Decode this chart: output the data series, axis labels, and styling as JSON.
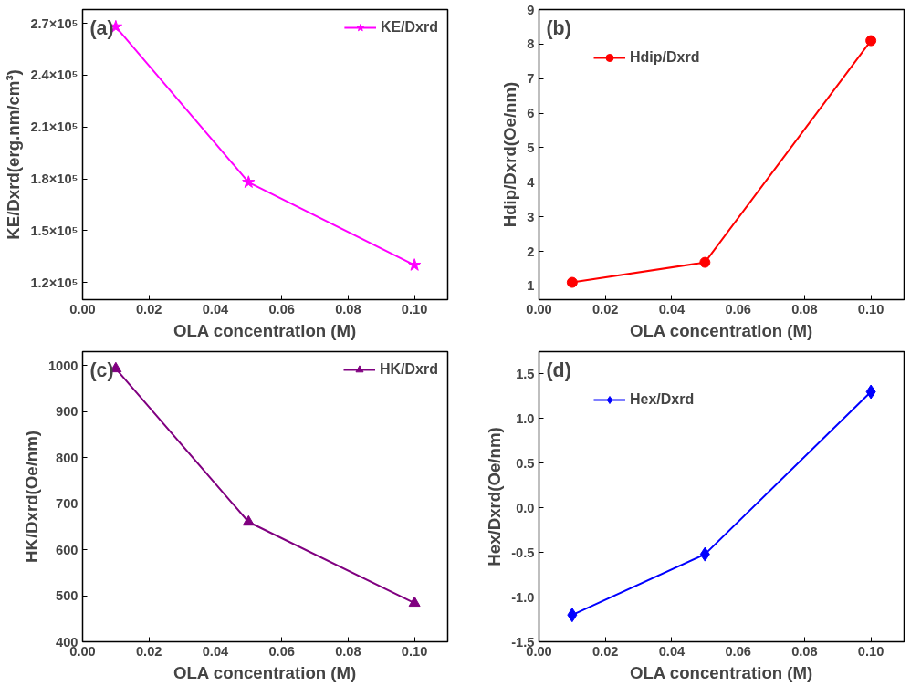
{
  "chart_data": [
    {
      "type": "line",
      "xlabel": "OLA concentration (M)",
      "ylabel": "KE/Dxrd(erg.nm/cm³)",
      "annotations": [
        "(a)"
      ],
      "x": [
        0.01,
        0.05,
        0.1
      ],
      "series": [
        {
          "name": "KE/Dxrd",
          "color": "#ff00ff",
          "values": [
            268000,
            178000,
            130000
          ]
        }
      ],
      "xlim": [
        0,
        0.11
      ],
      "xticks": [
        {
          "value": 0,
          "label": "0.00"
        },
        {
          "value": 0.02,
          "label": "0.02"
        },
        {
          "value": 0.04,
          "label": "0.04"
        },
        {
          "value": 0.06,
          "label": "0.06"
        },
        {
          "value": 0.08,
          "label": "0.08"
        },
        {
          "value": 0.1,
          "label": "0.10"
        }
      ],
      "ylim": [
        110000,
        278000
      ],
      "yticks": [
        {
          "value": 120000,
          "label": "1.2×10⁵"
        },
        {
          "value": 150000,
          "label": "1.5×10⁵"
        },
        {
          "value": 180000,
          "label": "1.8×10⁵"
        },
        {
          "value": 210000,
          "label": "2.1×10⁵"
        },
        {
          "value": 240000,
          "label": "2.4×10⁵"
        },
        {
          "value": 270000,
          "label": "2.7×10⁵"
        }
      ],
      "marker": "star",
      "legend": "top right",
      "grid": false
    },
    {
      "type": "line",
      "xlabel": "OLA concentration (M)",
      "ylabel": "Hdip/Dxrd(Oe/nm)",
      "annotations": [
        "(b)"
      ],
      "x": [
        0.01,
        0.05,
        0.1
      ],
      "series": [
        {
          "name": "Hdip/Dxrd",
          "color": "#ff0000",
          "values": [
            1.1,
            1.68,
            8.1
          ]
        }
      ],
      "xlim": [
        0,
        0.11
      ],
      "xticks": [
        {
          "value": 0,
          "label": "0.00"
        },
        {
          "value": 0.02,
          "label": "0.02"
        },
        {
          "value": 0.04,
          "label": "0.04"
        },
        {
          "value": 0.06,
          "label": "0.06"
        },
        {
          "value": 0.08,
          "label": "0.08"
        },
        {
          "value": 0.1,
          "label": "0.10"
        }
      ],
      "ylim": [
        0.6,
        9
      ],
      "yticks": [
        1,
        2,
        3,
        4,
        5,
        6,
        7,
        8,
        9
      ],
      "marker": "circle",
      "legend": "top left",
      "grid": false
    },
    {
      "type": "line",
      "xlabel": "OLA concentration (M)",
      "ylabel": "HK/Dxrd(Oe/nm)",
      "annotations": [
        "(c)"
      ],
      "x": [
        0.01,
        0.05,
        0.1
      ],
      "series": [
        {
          "name": "HK/Dxrd",
          "color": "#800080",
          "values": [
            993,
            660,
            484
          ]
        }
      ],
      "xlim": [
        0,
        0.11
      ],
      "xticks": [
        {
          "value": 0,
          "label": "0.00"
        },
        {
          "value": 0.02,
          "label": "0.02"
        },
        {
          "value": 0.04,
          "label": "0.04"
        },
        {
          "value": 0.06,
          "label": "0.06"
        },
        {
          "value": 0.08,
          "label": "0.08"
        },
        {
          "value": 0.1,
          "label": "0.10"
        }
      ],
      "ylim": [
        400,
        1030
      ],
      "yticks": [
        400,
        500,
        600,
        700,
        800,
        900,
        1000
      ],
      "marker": "triangle",
      "legend": "top right",
      "grid": false
    },
    {
      "type": "line",
      "xlabel": "OLA concentration (M)",
      "ylabel": "Hex/Dxrd(Oe/nm)",
      "annotations": [
        "(d)"
      ],
      "x": [
        0.01,
        0.05,
        0.1
      ],
      "series": [
        {
          "name": "Hex/Dxrd",
          "color": "#0000ff",
          "values": [
            -1.2,
            -0.52,
            1.3
          ]
        }
      ],
      "xlim": [
        0,
        0.11
      ],
      "xticks": [
        {
          "value": 0,
          "label": "0.00"
        },
        {
          "value": 0.02,
          "label": "0.02"
        },
        {
          "value": 0.04,
          "label": "0.04"
        },
        {
          "value": 0.06,
          "label": "0.06"
        },
        {
          "value": 0.08,
          "label": "0.08"
        },
        {
          "value": 0.1,
          "label": "0.10"
        }
      ],
      "ylim": [
        -1.5,
        1.75
      ],
      "yticks": [
        {
          "value": -1.5,
          "label": "-1.5"
        },
        {
          "value": -1.0,
          "label": "-1.0"
        },
        {
          "value": -0.5,
          "label": "-0.5"
        },
        {
          "value": 0.0,
          "label": "0.0"
        },
        {
          "value": 0.5,
          "label": "0.5"
        },
        {
          "value": 1.0,
          "label": "1.0"
        },
        {
          "value": 1.5,
          "label": "1.5"
        }
      ],
      "marker": "diamond",
      "legend": "top left",
      "grid": false
    }
  ]
}
